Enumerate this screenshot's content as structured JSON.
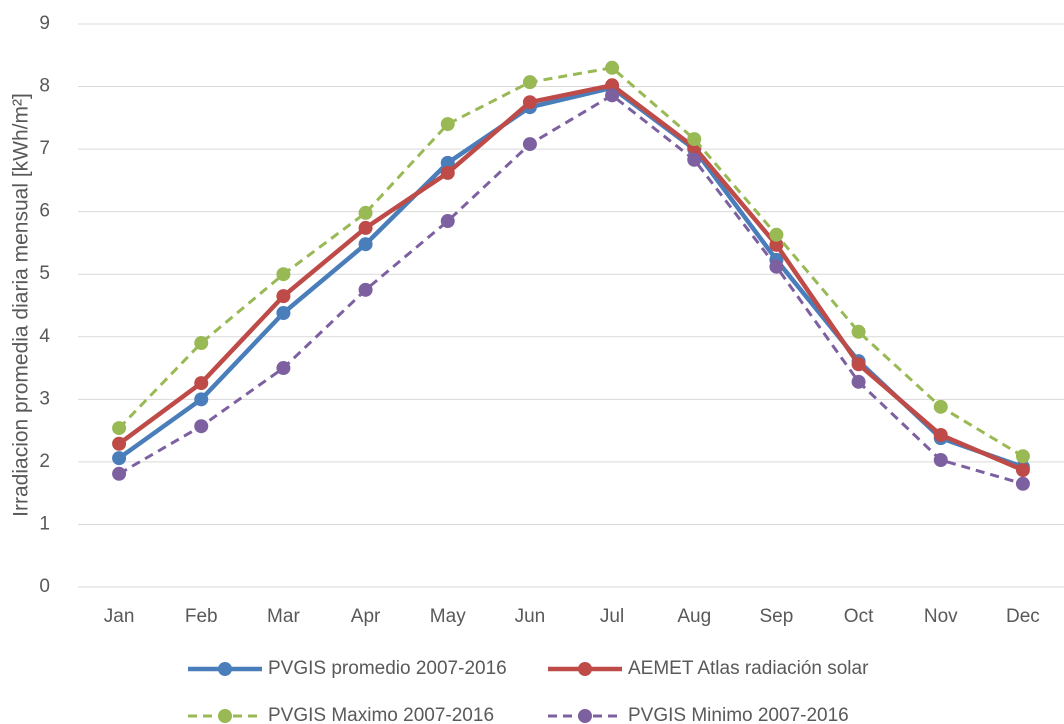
{
  "chart_data": {
    "type": "line",
    "y_label": "Irradiacion promedia diaria mensual [kWh/m²]",
    "categories": [
      "Jan",
      "Feb",
      "Mar",
      "Apr",
      "May",
      "Jun",
      "Jul",
      "Aug",
      "Sep",
      "Oct",
      "Nov",
      "Dec"
    ],
    "series": [
      {
        "name": "PVGIS promedio 2007-2016",
        "color": "#4a7ebb",
        "dash": false,
        "values": [
          2.06,
          3.0,
          4.38,
          5.48,
          6.78,
          7.67,
          7.98,
          7.0,
          5.23,
          3.61,
          2.38,
          1.92
        ]
      },
      {
        "name": "AEMET Atlas radiación solar",
        "color": "#be4b48",
        "dash": false,
        "values": [
          2.29,
          3.26,
          4.65,
          5.74,
          6.62,
          7.75,
          8.02,
          7.03,
          5.47,
          3.56,
          2.43,
          1.87
        ]
      },
      {
        "name": "PVGIS Maximo 2007-2016",
        "color": "#98b954",
        "dash": true,
        "values": [
          2.54,
          3.9,
          5.0,
          5.98,
          7.4,
          8.07,
          8.3,
          7.16,
          5.63,
          4.08,
          2.88,
          2.09
        ]
      },
      {
        "name": "PVGIS Minimo 2007-2016",
        "color": "#7d60a0",
        "dash": true,
        "values": [
          1.81,
          2.57,
          3.5,
          4.75,
          5.85,
          7.08,
          7.86,
          6.83,
          5.12,
          3.28,
          2.03,
          1.65
        ]
      }
    ],
    "ylim": [
      0,
      9
    ],
    "yticks": [
      0,
      1,
      2,
      3,
      4,
      5,
      6,
      7,
      8,
      9
    ],
    "grid": true,
    "legend": "bottom"
  }
}
